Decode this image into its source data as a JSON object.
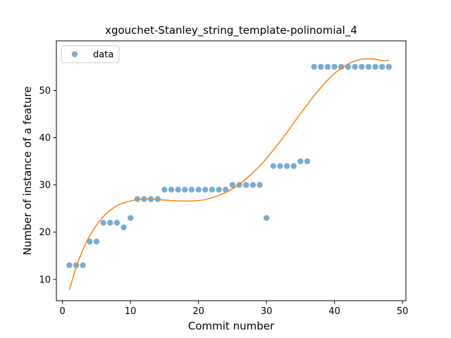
{
  "chart_data": {
    "type": "scatter",
    "title": "xgouchet-Stanley_string_template-polinomial_4",
    "xlabel": "Commit number",
    "ylabel": "Number of instance of a feature",
    "xlim": [
      -0.9,
      50.5
    ],
    "ylim": [
      5.5,
      60.5
    ],
    "xticks": [
      0,
      10,
      20,
      30,
      40,
      50
    ],
    "yticks": [
      10,
      20,
      30,
      40,
      50
    ],
    "grid": false,
    "legend": {
      "placement": "upper-left",
      "entries": [
        "data"
      ]
    },
    "series": [
      {
        "name": "data",
        "kind": "scatter",
        "color": "#1f77b4",
        "x": [
          1,
          2,
          3,
          4,
          5,
          6,
          7,
          8,
          9,
          10,
          11,
          12,
          13,
          14,
          15,
          16,
          17,
          18,
          19,
          20,
          21,
          22,
          23,
          24,
          25,
          26,
          27,
          28,
          29,
          30,
          31,
          32,
          33,
          34,
          35,
          36,
          37,
          38,
          39,
          40,
          41,
          42,
          43,
          44,
          45,
          46,
          47,
          48
        ],
        "y": [
          13,
          13,
          13,
          18,
          18,
          22,
          22,
          22,
          21,
          23,
          27,
          27,
          27,
          27,
          29,
          29,
          29,
          29,
          29,
          29,
          29,
          29,
          29,
          29,
          30,
          30,
          30,
          30,
          30,
          23,
          34,
          34,
          34,
          34,
          35,
          35,
          55,
          55,
          55,
          55,
          55,
          55,
          55,
          55,
          55,
          55,
          55,
          55
        ]
      },
      {
        "kind": "line",
        "color": "#ff7f0e",
        "x": [
          1,
          2,
          3,
          4,
          5,
          6,
          7,
          8,
          9,
          10,
          11,
          12,
          13,
          14,
          15,
          16,
          17,
          18,
          19,
          20,
          21,
          22,
          23,
          24,
          25,
          26,
          27,
          28,
          29,
          30,
          31,
          32,
          33,
          34,
          35,
          36,
          37,
          38,
          39,
          40,
          41,
          42,
          43,
          44,
          45,
          46,
          47,
          48
        ],
        "y": [
          7.8,
          12.5,
          16.3,
          19.2,
          21.5,
          23.3,
          24.6,
          25.6,
          26.2,
          26.6,
          26.9,
          27.0,
          27.0,
          26.9,
          26.8,
          26.7,
          26.6,
          26.6,
          26.6,
          26.7,
          26.9,
          27.3,
          27.8,
          28.4,
          29.2,
          30.1,
          31.3,
          32.6,
          34.0,
          35.6,
          37.4,
          39.2,
          41.1,
          43.1,
          45.1,
          47.0,
          48.9,
          50.6,
          52.2,
          53.6,
          54.7,
          55.6,
          56.2,
          56.6,
          56.7,
          56.6,
          56.3,
          56.4
        ]
      }
    ]
  }
}
